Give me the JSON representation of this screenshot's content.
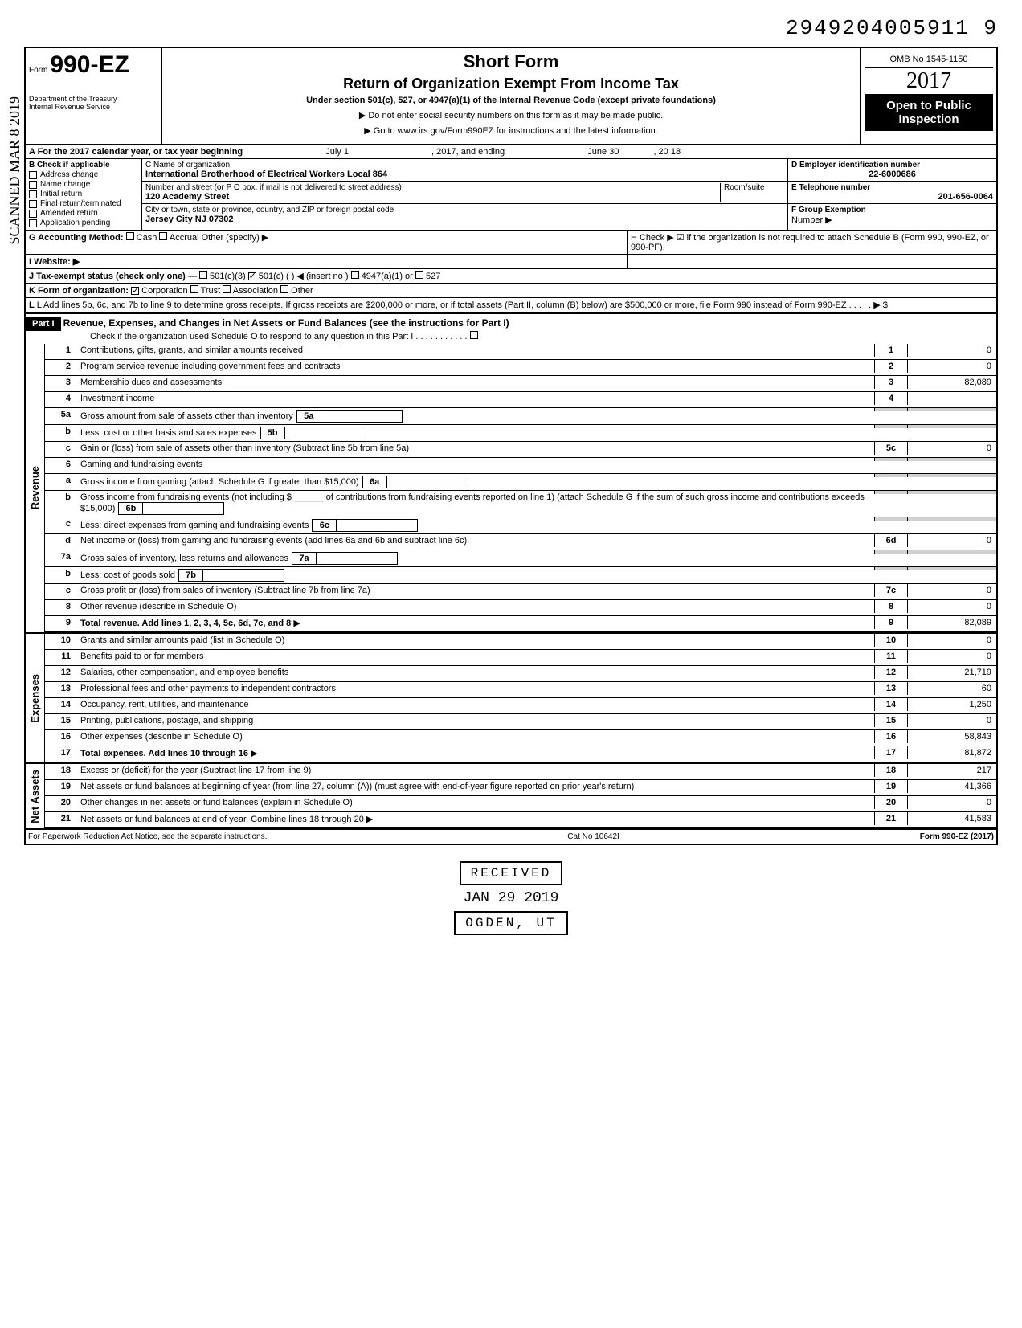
{
  "doc_number": "2949204005911 9",
  "omb": "OMB No 1545-1150",
  "form_no": "990-EZ",
  "form_prefix": "Form",
  "year": "2017",
  "short_form": "Short Form",
  "return_title": "Return of Organization Exempt From Income Tax",
  "subtitle": "Under section 501(c), 527, or 4947(a)(1) of the Internal Revenue Code (except private foundations)",
  "instr1": "▶ Do not enter social security numbers on this form as it may be made public.",
  "instr2": "▶ Go to www.irs.gov/Form990EZ for instructions and the latest information.",
  "open_public1": "Open to Public",
  "open_public2": "Inspection",
  "dept": "Department of the Treasury\nInternal Revenue Service",
  "calendar_line": "A For the 2017 calendar year, or tax year beginning",
  "begin_date": "July 1",
  "mid": ", 2017, and ending",
  "end_date": "June 30",
  "end_year": ", 20 18",
  "section_b": "B Check if applicable",
  "checkboxes": [
    "Address change",
    "Name change",
    "Initial return",
    "Final return/terminated",
    "Amended return",
    "Application pending"
  ],
  "c_label": "C Name of organization",
  "org_name": "International Brotherhood of Electrical Workers Local 864",
  "addr_label": "Number and street (or P O box, if mail is not delivered to street address)",
  "room_label": "Room/suite",
  "addr": "120 Academy Street",
  "city_label": "City or town, state or province, country, and ZIP or foreign postal code",
  "city": "Jersey City NJ 07302",
  "d_label": "D Employer identification number",
  "ein": "22-6000686",
  "e_label": "E Telephone number",
  "phone": "201-656-0064",
  "f_label": "F Group Exemption",
  "f_number": "Number ▶",
  "g_label": "G Accounting Method:",
  "g_options": [
    "Cash",
    "Accrual"
  ],
  "g_other": "Other (specify) ▶",
  "h_label": "H Check ▶ ☑ if the organization is not required to attach Schedule B (Form 990, 990-EZ, or 990-PF).",
  "i_label": "I Website: ▶",
  "j_label": "J Tax-exempt status (check only one) —",
  "j_opts": [
    "501(c)(3)",
    "501(c) (",
    "4947(a)(1) or",
    "527"
  ],
  "j_insert": ") ◀ (insert no )",
  "k_label": "K Form of organization:",
  "k_opts": [
    "Corporation",
    "Trust",
    "Association",
    "Other"
  ],
  "l_label": "L Add lines 5b, 6c, and 7b to line 9 to determine gross receipts. If gross receipts are $200,000 or more, or if total assets (Part II, column (B) below) are $500,000 or more, file Form 990 instead of Form 990-EZ",
  "part1_label": "Part I",
  "part1_title": "Revenue, Expenses, and Changes in Net Assets or Fund Balances (see the instructions for Part I)",
  "part1_check": "Check if the organization used Schedule O to respond to any question in this Part I",
  "sections": {
    "revenue": "Revenue",
    "expenses": "Expenses",
    "netassets": "Net Assets"
  },
  "lines": [
    {
      "n": "1",
      "d": "Contributions, gifts, grants, and similar amounts received",
      "box": "1",
      "v": "0"
    },
    {
      "n": "2",
      "d": "Program service revenue including government fees and contracts",
      "box": "2",
      "v": "0"
    },
    {
      "n": "3",
      "d": "Membership dues and assessments",
      "box": "3",
      "v": "82,089"
    },
    {
      "n": "4",
      "d": "Investment income",
      "box": "4",
      "v": ""
    },
    {
      "n": "5a",
      "d": "Gross amount from sale of assets other than inventory",
      "sub": "5a"
    },
    {
      "n": "b",
      "d": "Less: cost or other basis and sales expenses",
      "sub": "5b"
    },
    {
      "n": "c",
      "d": "Gain or (loss) from sale of assets other than inventory (Subtract line 5b from line 5a)",
      "box": "5c",
      "v": "0"
    },
    {
      "n": "6",
      "d": "Gaming and fundraising events"
    },
    {
      "n": "a",
      "d": "Gross income from gaming (attach Schedule G if greater than $15,000)",
      "sub": "6a"
    },
    {
      "n": "b",
      "d": "Gross income from fundraising events (not including $ ______ of contributions from fundraising events reported on line 1) (attach Schedule G if the sum of such gross income and contributions exceeds $15,000)",
      "sub": "6b"
    },
    {
      "n": "c",
      "d": "Less: direct expenses from gaming and fundraising events",
      "sub": "6c"
    },
    {
      "n": "d",
      "d": "Net income or (loss) from gaming and fundraising events (add lines 6a and 6b and subtract line 6c)",
      "box": "6d",
      "v": "0"
    },
    {
      "n": "7a",
      "d": "Gross sales of inventory, less returns and allowances",
      "sub": "7a"
    },
    {
      "n": "b",
      "d": "Less: cost of goods sold",
      "sub": "7b"
    },
    {
      "n": "c",
      "d": "Gross profit or (loss) from sales of inventory (Subtract line 7b from line 7a)",
      "box": "7c",
      "v": "0"
    },
    {
      "n": "8",
      "d": "Other revenue (describe in Schedule O)",
      "box": "8",
      "v": "0"
    },
    {
      "n": "9",
      "d": "Total revenue. Add lines 1, 2, 3, 4, 5c, 6d, 7c, and 8",
      "box": "9",
      "v": "82,089",
      "arrow": true,
      "bold": true
    }
  ],
  "expense_lines": [
    {
      "n": "10",
      "d": "Grants and similar amounts paid (list in Schedule O)",
      "box": "10",
      "v": "0"
    },
    {
      "n": "11",
      "d": "Benefits paid to or for members",
      "box": "11",
      "v": "0"
    },
    {
      "n": "12",
      "d": "Salaries, other compensation, and employee benefits",
      "box": "12",
      "v": "21,719"
    },
    {
      "n": "13",
      "d": "Professional fees and other payments to independent contractors",
      "box": "13",
      "v": "60"
    },
    {
      "n": "14",
      "d": "Occupancy, rent, utilities, and maintenance",
      "box": "14",
      "v": "1,250"
    },
    {
      "n": "15",
      "d": "Printing, publications, postage, and shipping",
      "box": "15",
      "v": "0"
    },
    {
      "n": "16",
      "d": "Other expenses (describe in Schedule O)",
      "box": "16",
      "v": "58,843"
    },
    {
      "n": "17",
      "d": "Total expenses. Add lines 10 through 16",
      "box": "17",
      "v": "81,872",
      "arrow": true,
      "bold": true
    }
  ],
  "netasset_lines": [
    {
      "n": "18",
      "d": "Excess or (deficit) for the year (Subtract line 17 from line 9)",
      "box": "18",
      "v": "217"
    },
    {
      "n": "19",
      "d": "Net assets or fund balances at beginning of year (from line 27, column (A)) (must agree with end-of-year figure reported on prior year's return)",
      "box": "19",
      "v": "41,366"
    },
    {
      "n": "20",
      "d": "Other changes in net assets or fund balances (explain in Schedule O)",
      "box": "20",
      "v": "0"
    },
    {
      "n": "21",
      "d": "Net assets or fund balances at end of year. Combine lines 18 through 20",
      "box": "21",
      "v": "41,583",
      "arrow": true
    }
  ],
  "paperwork": "For Paperwork Reduction Act Notice, see the separate instructions.",
  "catno": "Cat No 10642I",
  "form_footer": "Form 990-EZ (2017)",
  "received": "RECEIVED",
  "stamp_date": "JAN 29 2019",
  "ogden": "OGDEN, UT",
  "scanned": "SCANNED MAR 8 2019"
}
